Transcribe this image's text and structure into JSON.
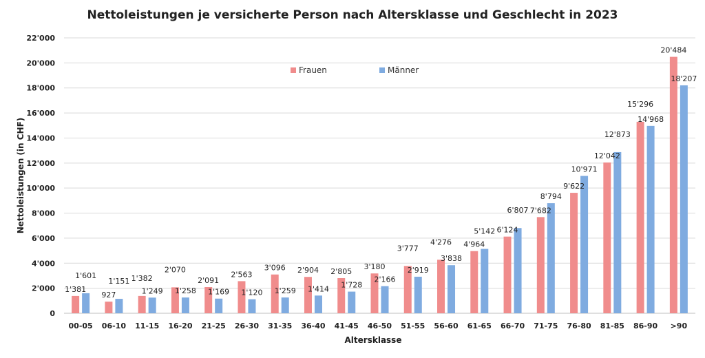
{
  "chart_data": {
    "type": "bar",
    "title": "Nettoleistungen je versicherte Person nach Altersklasse und Geschlecht in 2023",
    "xlabel": "Altersklasse",
    "ylabel": "Nettoleistungen (in CHF)",
    "ylim": [
      0,
      22000
    ],
    "yticks": [
      "0",
      "2'000",
      "4'000",
      "6'000",
      "8'000",
      "10'000",
      "12'000",
      "14'000",
      "16'000",
      "18'000",
      "20'000",
      "22'000"
    ],
    "grid": true,
    "legend": "top-center",
    "categories": [
      "00-05",
      "06-10",
      "11-15",
      "16-20",
      "21-25",
      "26-30",
      "31-35",
      "36-40",
      "41-45",
      "46-50",
      "51-55",
      "56-60",
      "61-65",
      "66-70",
      "71-75",
      "76-80",
      "81-85",
      "86-90",
      ">90"
    ],
    "series": [
      {
        "name": "Frauen",
        "color": "#f08c8c",
        "values": [
          1381,
          927,
          1382,
          2070,
          2091,
          2563,
          3096,
          2904,
          2805,
          3180,
          3777,
          4276,
          4964,
          6124,
          7682,
          9622,
          12042,
          15296,
          20484
        ],
        "labels": [
          "1'381",
          "927",
          "1'382",
          "2'070",
          "2'091",
          "2'563",
          "3'096",
          "2'904",
          "2'805",
          "3'180",
          "3'777",
          "4'276",
          "4'964",
          "6'124",
          "7'682",
          "9'622",
          "12'042",
          "15'296",
          "20'484"
        ]
      },
      {
        "name": "Männer",
        "color": "#7fabe0",
        "values": [
          1601,
          1151,
          1249,
          1258,
          1169,
          1120,
          1259,
          1414,
          1728,
          2166,
          2919,
          3838,
          5142,
          6807,
          8794,
          10971,
          12873,
          14968,
          18207
        ],
        "labels": [
          "1'601",
          "1'151",
          "1'249",
          "1'258",
          "1'169",
          "1'120",
          "1'259",
          "1'414",
          "1'728",
          "2'166",
          "2'919",
          "3'838",
          "5'142",
          "6'807",
          "8'794",
          "10'971",
          "12'873",
          "14'968",
          "18'207"
        ]
      }
    ]
  }
}
